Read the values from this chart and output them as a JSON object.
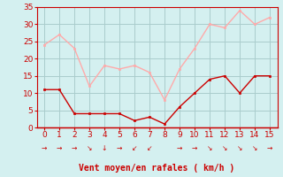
{
  "x": [
    0,
    1,
    2,
    3,
    4,
    5,
    6,
    7,
    8,
    9,
    10,
    11,
    12,
    13,
    14,
    15
  ],
  "wind_avg": [
    11,
    11,
    4,
    4,
    4,
    4,
    2,
    3,
    1,
    6,
    10,
    14,
    15,
    10,
    15,
    15
  ],
  "wind_gust": [
    24,
    27,
    23,
    12,
    18,
    17,
    18,
    16,
    8,
    17,
    23,
    30,
    29,
    34,
    30,
    32
  ],
  "color_avg": "#cc0000",
  "color_gust": "#ffaaaa",
  "bg_color": "#d4f0f0",
  "grid_color": "#aacccc",
  "xlabel": "Vent moyen/en rafales ( km/h )",
  "xlabel_color": "#cc0000",
  "xlabel_fontsize": 7,
  "tick_color": "#cc0000",
  "ylim": [
    0,
    35
  ],
  "yticks": [
    0,
    5,
    10,
    15,
    20,
    25,
    30,
    35
  ],
  "xlim": [
    -0.5,
    15.5
  ],
  "wind_dirs": [
    "→",
    "→",
    "→",
    "↘",
    "↓",
    "→",
    "↙",
    "↙",
    "",
    "→",
    "→",
    "↘",
    "↘",
    "↘",
    "↘",
    "→"
  ]
}
